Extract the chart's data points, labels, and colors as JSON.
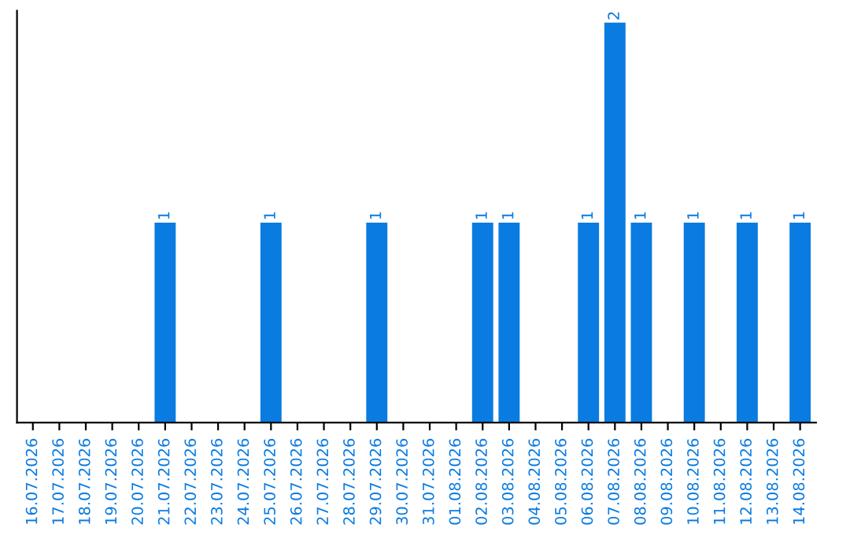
{
  "chart_data": {
    "type": "bar",
    "categories": [
      "16.07.2026",
      "17.07.2026",
      "18.07.2026",
      "19.07.2026",
      "20.07.2026",
      "21.07.2026",
      "22.07.2026",
      "23.07.2026",
      "24.07.2026",
      "25.07.2026",
      "26.07.2026",
      "27.07.2026",
      "28.07.2026",
      "29.07.2026",
      "30.07.2026",
      "31.07.2026",
      "01.08.2026",
      "02.08.2026",
      "03.08.2026",
      "04.08.2026",
      "05.08.2026",
      "06.08.2026",
      "07.08.2026",
      "08.08.2026",
      "09.08.2026",
      "10.08.2026",
      "11.08.2026",
      "12.08.2026",
      "13.08.2026",
      "14.08.2026"
    ],
    "values": [
      0,
      0,
      0,
      0,
      0,
      1,
      0,
      0,
      0,
      1,
      0,
      0,
      0,
      1,
      0,
      0,
      0,
      1,
      1,
      0,
      0,
      1,
      2,
      1,
      0,
      1,
      0,
      1,
      0,
      1
    ],
    "value_labels": [
      null,
      null,
      null,
      null,
      null,
      "1",
      null,
      null,
      null,
      "1",
      null,
      null,
      null,
      "1",
      null,
      null,
      null,
      "1",
      "1",
      null,
      null,
      "1",
      "2",
      "1",
      null,
      "1",
      null,
      "1",
      null,
      "1"
    ],
    "color": "#0a7be0",
    "tick_labels": "x",
    "grid": false,
    "legend": false
  }
}
